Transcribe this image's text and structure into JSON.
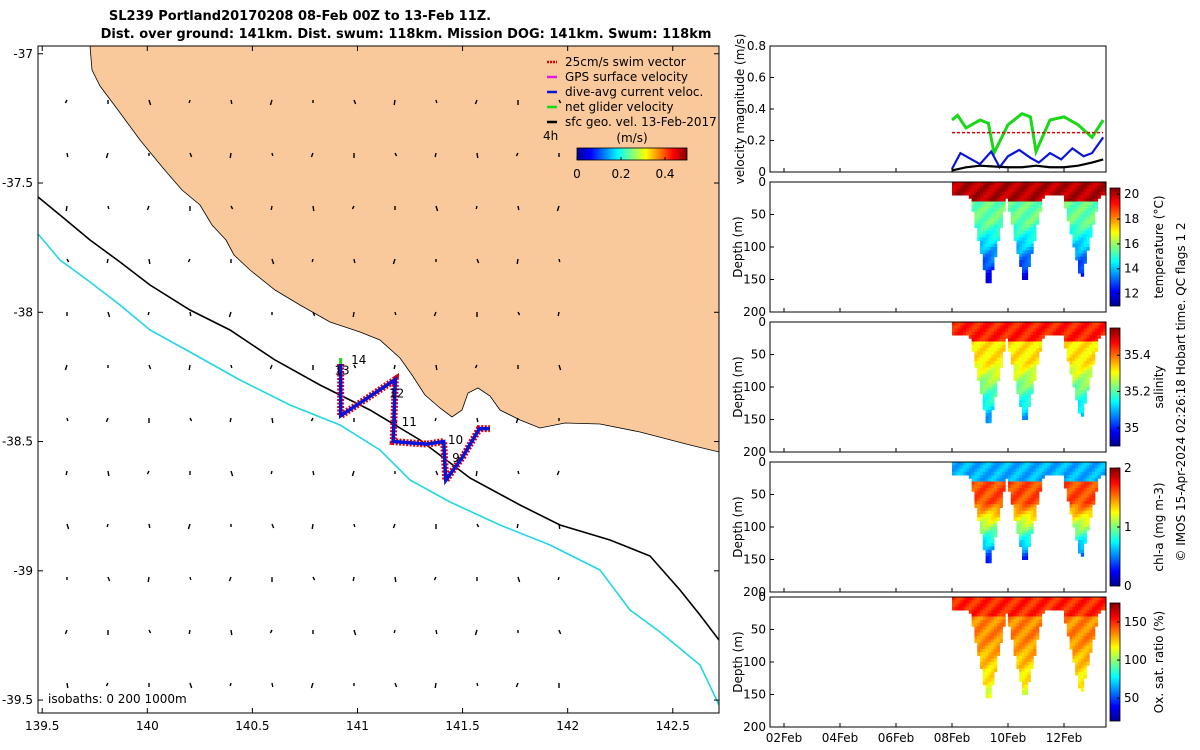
{
  "title": {
    "line1": "SL239 Portland20170208 08-Feb 00Z to 13-Feb 11Z.",
    "line2": "Dist. over ground: 141km. Dist. swum: 118km. Mission DOG: 141km. Swum: 118km"
  },
  "credit": "© IMOS 15-Apr-2024 02:26:18 Hobart time. QC flags 1  2",
  "colors": {
    "land": "#FAC99B",
    "isobath_200": "#000000",
    "isobath_1000": "#22D6E6",
    "swim_vector": "#E00000",
    "gps_velocity": "#E01EE0",
    "dive_avg": "#0A14D8",
    "net_glider": "#18D818",
    "sfc_geo": "#000000"
  },
  "chart_data": [
    {
      "type": "map",
      "name": "glider-track-map",
      "xticks": [
        "139.5",
        "140",
        "140.5",
        "141",
        "141.5",
        "142",
        "142.5"
      ],
      "yticks": [
        "-37",
        "-37.5",
        "-38",
        "-38.5",
        "-39",
        "-39.5"
      ],
      "xlim": [
        139.48,
        142.72
      ],
      "ylim": [
        -39.55,
        -36.97
      ],
      "legend": {
        "placement": "top-right",
        "items": [
          {
            "label": "25cm/s swim vector",
            "color": "#E00000"
          },
          {
            "label": "GPS surface velocity",
            "color": "#E01EE0"
          },
          {
            "label": "dive-avg current veloc.",
            "color": "#0A14D8"
          },
          {
            "label": "net glider velocity",
            "color": "#18D818"
          },
          {
            "label": "sfc geo. vel. 13-Feb-2017",
            "color": "#000000"
          }
        ]
      },
      "colorbar": {
        "unit": "(m/s)",
        "ticks": [
          "0",
          "0.2",
          "0.4"
        ],
        "range": [
          0,
          0.5
        ]
      },
      "label_4h": "4h",
      "isobaths_label": "isobaths: 0   200  1000m",
      "track": [
        [
          140.92,
          -38.2
        ],
        [
          140.92,
          -38.4
        ],
        [
          141.18,
          -38.26
        ],
        [
          141.17,
          -38.5
        ],
        [
          141.33,
          -38.51
        ],
        [
          141.41,
          -38.5
        ],
        [
          141.42,
          -38.65
        ],
        [
          141.5,
          -38.56
        ],
        [
          141.58,
          -38.45
        ],
        [
          141.63,
          -38.45
        ]
      ],
      "day_labels": [
        {
          "text": "14",
          "lon": 140.97,
          "lat": -38.2
        },
        {
          "text": "13",
          "lon": 140.89,
          "lat": -38.24
        },
        {
          "text": "12",
          "lon": 141.15,
          "lat": -38.33
        },
        {
          "text": "11",
          "lon": 141.21,
          "lat": -38.44
        },
        {
          "text": "10",
          "lon": 141.43,
          "lat": -38.51
        },
        {
          "text": "9",
          "lon": 141.45,
          "lat": -38.58
        }
      ]
    },
    {
      "type": "line",
      "name": "velocity-magnitude",
      "ylabel": "velocity magnitude (m/s)",
      "ylim": [
        0,
        0.8
      ],
      "yticks": [
        "0",
        "0.2",
        "0.4",
        "0.6",
        "0.8"
      ],
      "xlim_days": [
        1.5,
        13.5
      ],
      "series": [
        {
          "color": "#18D818",
          "x": [
            8.0,
            8.2,
            8.5,
            9.0,
            9.3,
            9.5,
            10.0,
            10.5,
            10.8,
            11.0,
            11.5,
            12.0,
            12.5,
            13.0,
            13.4
          ],
          "y": [
            0.33,
            0.36,
            0.28,
            0.33,
            0.31,
            0.12,
            0.3,
            0.37,
            0.35,
            0.13,
            0.33,
            0.35,
            0.3,
            0.22,
            0.33
          ]
        },
        {
          "color": "#E00000",
          "x": [
            8.0,
            13.4
          ],
          "y": [
            0.25,
            0.25
          ]
        },
        {
          "color": "#0A14D8",
          "x": [
            8.0,
            8.3,
            8.7,
            9.0,
            9.4,
            9.7,
            10.0,
            10.4,
            10.8,
            11.1,
            11.5,
            11.9,
            12.3,
            12.7,
            13.0,
            13.4
          ],
          "y": [
            0.02,
            0.12,
            0.08,
            0.05,
            0.13,
            0.03,
            0.1,
            0.14,
            0.09,
            0.06,
            0.12,
            0.08,
            0.15,
            0.1,
            0.12,
            0.22
          ]
        },
        {
          "color": "#000000",
          "x": [
            8.0,
            8.5,
            9.0,
            9.5,
            10.0,
            10.5,
            11.0,
            11.5,
            12.0,
            12.5,
            13.0,
            13.4
          ],
          "y": [
            0.01,
            0.03,
            0.04,
            0.035,
            0.03,
            0.03,
            0.04,
            0.03,
            0.03,
            0.04,
            0.06,
            0.08
          ]
        }
      ]
    },
    {
      "type": "heatmap",
      "name": "temperature-section",
      "ylabel": "Depth (m)",
      "clabel": "temperature (°C)",
      "yticks": [
        "0",
        "50",
        "100",
        "150",
        "200"
      ],
      "cticks": [
        "12",
        "14",
        "16",
        "18",
        "20"
      ],
      "crange": [
        11,
        20.5
      ],
      "surface": 20.0,
      "thermocline": 15.5,
      "deep": 11.5
    },
    {
      "type": "heatmap",
      "name": "salinity-section",
      "ylabel": "Depth (m)",
      "clabel": "salinity",
      "yticks": [
        "0",
        "50",
        "100",
        "150",
        "200"
      ],
      "cticks": [
        "35",
        "35.2",
        "35.4"
      ],
      "crange": [
        34.9,
        35.55
      ],
      "surface": 35.45,
      "thermocline": 35.32,
      "deep": 35.05
    },
    {
      "type": "heatmap",
      "name": "chla-section",
      "ylabel": "Depth (m)",
      "clabel": "chl-a (mg m-3)",
      "yticks": [
        "0",
        "50",
        "100",
        "150",
        "200"
      ],
      "cticks": [
        "0",
        "1",
        "2"
      ],
      "crange": [
        0,
        2
      ],
      "surface": 0.6,
      "thermocline": 1.6,
      "deep": 0.15
    },
    {
      "type": "heatmap",
      "name": "oxygen-section",
      "ylabel": "Depth (m)",
      "clabel": "Ox. sat. ratio (%)",
      "yticks": [
        "0",
        "50",
        "100",
        "150",
        "200"
      ],
      "cticks": [
        "50",
        "100",
        "150"
      ],
      "crange": [
        20,
        175
      ],
      "surface": 150,
      "thermocline": 135,
      "deep": 110
    }
  ],
  "time_axis": {
    "labels": [
      "02Feb",
      "04Feb",
      "06Feb",
      "08Feb",
      "10Feb",
      "12Feb"
    ],
    "days": [
      2,
      4,
      6,
      8,
      10,
      12
    ]
  }
}
